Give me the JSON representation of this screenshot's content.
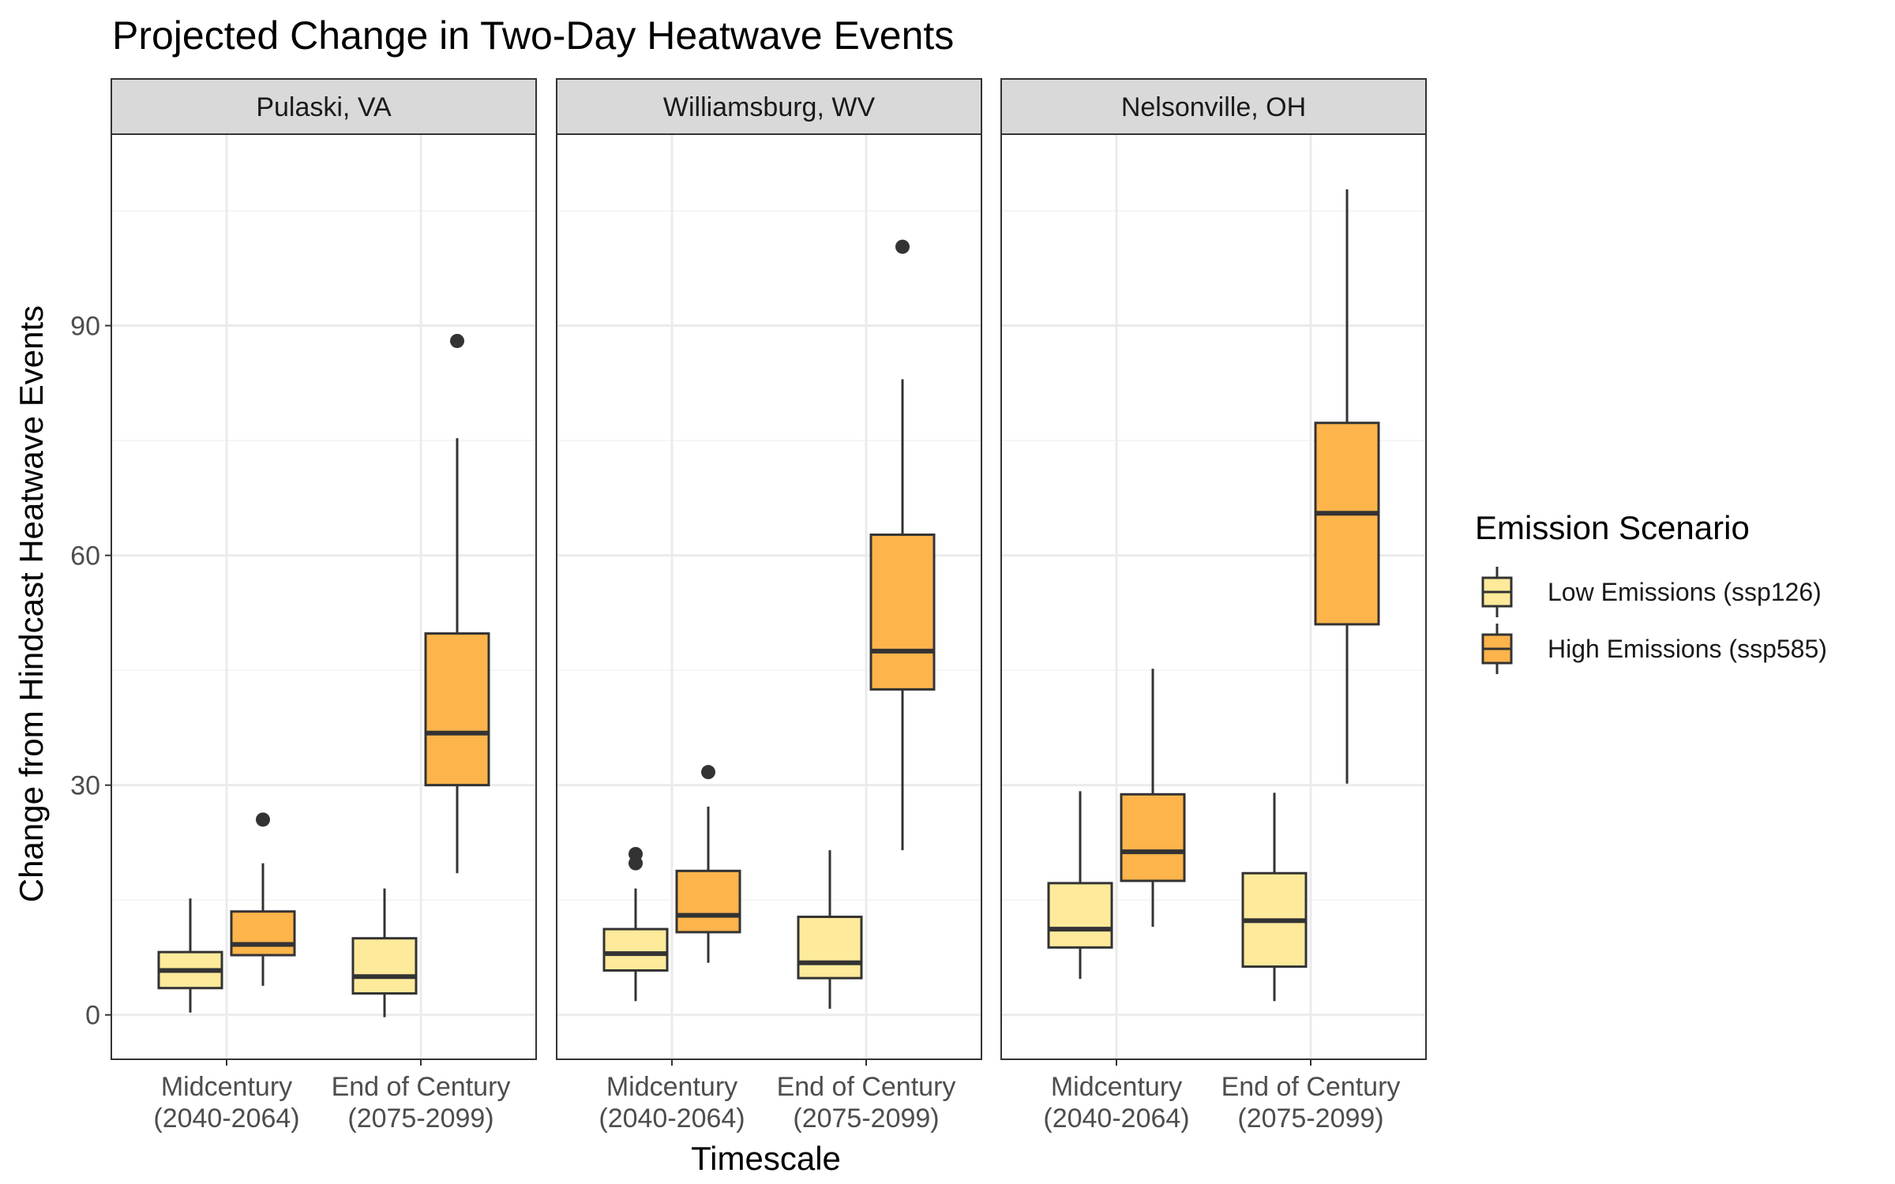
{
  "chart_data": {
    "type": "boxplot",
    "title": "Projected Change in Two-Day Heatwave Events",
    "xlabel": "Timescale",
    "ylabel": "Change from Hindcast Heatwave Events",
    "ylim": [
      -5.8,
      115
    ],
    "yticks": [
      0,
      30,
      60,
      90
    ],
    "categories": [
      {
        "line1": "Midcentury",
        "line2": "(2040-2064)"
      },
      {
        "line1": "End of Century",
        "line2": "(2075-2099)"
      }
    ],
    "legend": {
      "title": "Emission Scenario",
      "position": "right",
      "entries": [
        {
          "key": "low",
          "label": "Low Emissions (ssp126)",
          "color": "#FEEA9B"
        },
        {
          "key": "high",
          "label": "High Emissions (ssp585)",
          "color": "#FDB44B"
        }
      ]
    },
    "panels": [
      {
        "label": "Pulaski, VA",
        "boxes": [
          {
            "category": 0,
            "series": "low",
            "min": 0.3,
            "q1": 3.5,
            "median": 5.8,
            "q3": 8.2,
            "max": 15.2,
            "outliers": []
          },
          {
            "category": 0,
            "series": "high",
            "min": 3.8,
            "q1": 7.8,
            "median": 9.2,
            "q3": 13.5,
            "max": 19.8,
            "outliers": [
              25.5
            ]
          },
          {
            "category": 1,
            "series": "low",
            "min": -0.3,
            "q1": 2.8,
            "median": 5.0,
            "q3": 10.0,
            "max": 16.5,
            "outliers": []
          },
          {
            "category": 1,
            "series": "high",
            "min": 18.5,
            "q1": 30.0,
            "median": 36.8,
            "q3": 49.8,
            "max": 75.3,
            "outliers": [
              88.0
            ]
          }
        ]
      },
      {
        "label": "Williamsburg, WV",
        "boxes": [
          {
            "category": 0,
            "series": "low",
            "min": 1.8,
            "q1": 5.8,
            "median": 8.0,
            "q3": 11.2,
            "max": 16.5,
            "outliers": [
              19.8,
              21.0
            ]
          },
          {
            "category": 0,
            "series": "high",
            "min": 6.8,
            "q1": 10.8,
            "median": 13.0,
            "q3": 18.8,
            "max": 27.2,
            "outliers": [
              31.7
            ]
          },
          {
            "category": 1,
            "series": "low",
            "min": 0.8,
            "q1": 4.8,
            "median": 6.8,
            "q3": 12.8,
            "max": 21.5,
            "outliers": []
          },
          {
            "category": 1,
            "series": "high",
            "min": 21.5,
            "q1": 42.5,
            "median": 47.5,
            "q3": 62.7,
            "max": 83.0,
            "outliers": [
              100.3
            ]
          }
        ]
      },
      {
        "label": "Nelsonville, OH",
        "boxes": [
          {
            "category": 0,
            "series": "low",
            "min": 4.7,
            "q1": 8.8,
            "median": 11.2,
            "q3": 17.2,
            "max": 29.2,
            "outliers": []
          },
          {
            "category": 0,
            "series": "high",
            "min": 11.5,
            "q1": 17.5,
            "median": 21.3,
            "q3": 28.8,
            "max": 45.2,
            "outliers": []
          },
          {
            "category": 1,
            "series": "low",
            "min": 1.8,
            "q1": 6.3,
            "median": 12.3,
            "q3": 18.5,
            "max": 29.0,
            "outliers": []
          },
          {
            "category": 1,
            "series": "high",
            "min": 30.2,
            "q1": 51.0,
            "median": 65.5,
            "q3": 77.3,
            "max": 107.8,
            "outliers": []
          }
        ]
      }
    ]
  }
}
